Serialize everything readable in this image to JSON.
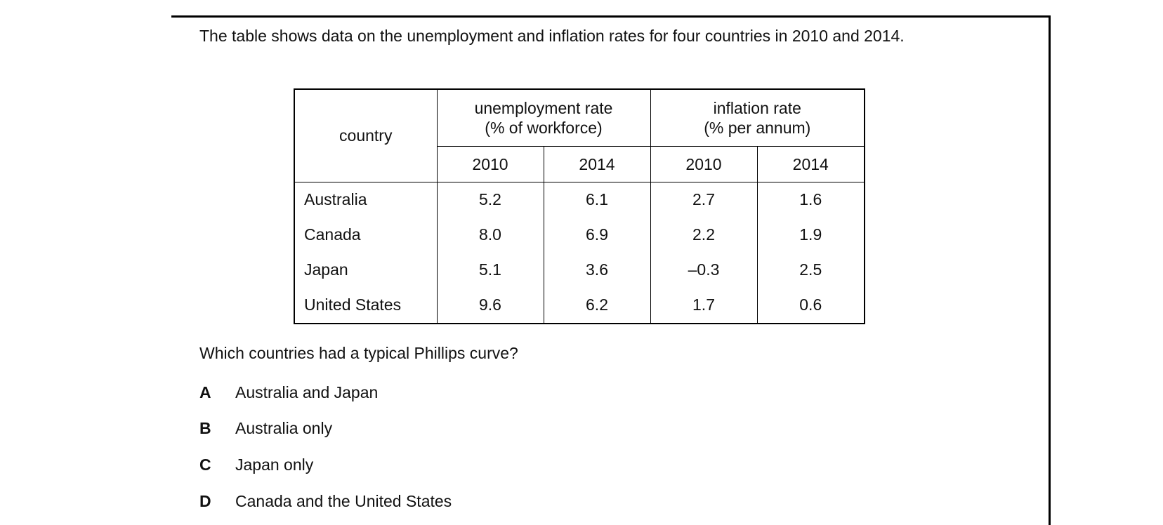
{
  "intro": "The table shows data on the unemployment and inflation rates for four countries in 2010 and 2014.",
  "table": {
    "headers": {
      "country": "country",
      "unemployment": "unemployment rate\n(% of workforce)",
      "inflation": "inflation rate\n(% per annum)",
      "years": [
        "2010",
        "2014",
        "2010",
        "2014"
      ]
    },
    "rows": [
      [
        "Australia",
        "5.2",
        "6.1",
        "2.7",
        "1.6"
      ],
      [
        "Canada",
        "8.0",
        "6.9",
        "2.2",
        "1.9"
      ],
      [
        "Japan",
        "5.1",
        "3.6",
        "–0.3",
        "2.5"
      ],
      [
        "United States",
        "9.6",
        "6.2",
        "1.7",
        "0.6"
      ]
    ]
  },
  "question": "Which countries had a typical Phillips curve?",
  "options": [
    {
      "letter": "A",
      "text": "Australia and Japan"
    },
    {
      "letter": "B",
      "text": "Australia only"
    },
    {
      "letter": "C",
      "text": "Japan only"
    },
    {
      "letter": "D",
      "text": "Canada and the United States"
    }
  ]
}
